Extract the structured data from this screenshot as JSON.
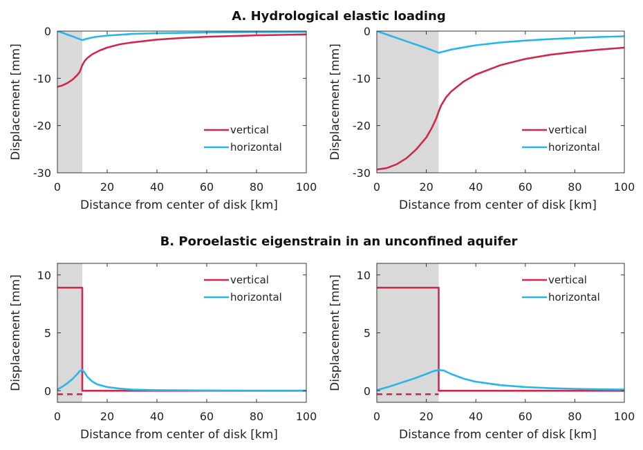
{
  "section_titles": {
    "a": "A. Hydrological elastic loading",
    "b": "B. Poroelastic eigenstrain in an unconfined aquifer"
  },
  "colors": {
    "vertical": "#d0284b",
    "horizontal": "#27b6ea",
    "shade": "#d9d9d9"
  },
  "chart_data": [
    {
      "id": "a-left",
      "type": "line",
      "xlabel": "Distance from center of disk [km]",
      "ylabel": "Displacement [mm]",
      "xlim": [
        0,
        100
      ],
      "ylim": [
        -30,
        0
      ],
      "xticks": [
        0,
        20,
        40,
        60,
        80,
        100
      ],
      "yticks": [
        0,
        -10,
        -20,
        -30
      ],
      "shaded_region": [
        0,
        10
      ],
      "legend": "bottom-right",
      "series": [
        {
          "name": "vertical",
          "style": "solid",
          "x": [
            0,
            2,
            4,
            6,
            8,
            9,
            10,
            11,
            12,
            14,
            17,
            20,
            25,
            30,
            40,
            50,
            60,
            70,
            80,
            90,
            100
          ],
          "y": [
            -11.8,
            -11.5,
            -11.0,
            -10.3,
            -9.3,
            -8.6,
            -7.2,
            -6.3,
            -5.7,
            -4.9,
            -4.1,
            -3.5,
            -2.8,
            -2.4,
            -1.8,
            -1.45,
            -1.2,
            -1.05,
            -0.9,
            -0.8,
            -0.7
          ]
        },
        {
          "name": "horizontal",
          "style": "solid",
          "x": [
            0,
            2,
            4,
            6,
            8,
            10,
            12,
            15,
            20,
            30,
            40,
            60,
            80,
            100
          ],
          "y": [
            0,
            -0.35,
            -0.75,
            -1.1,
            -1.5,
            -1.9,
            -1.6,
            -1.25,
            -0.95,
            -0.6,
            -0.45,
            -0.3,
            -0.22,
            -0.18
          ]
        }
      ]
    },
    {
      "id": "a-right",
      "type": "line",
      "xlabel": "Distance from center of disk [km]",
      "ylabel": "Displacement [mm]",
      "xlim": [
        0,
        100
      ],
      "ylim": [
        -30,
        0
      ],
      "xticks": [
        0,
        20,
        40,
        60,
        80,
        100
      ],
      "yticks": [
        0,
        -10,
        -20,
        -30
      ],
      "shaded_region": [
        0,
        25
      ],
      "legend": "bottom-right",
      "series": [
        {
          "name": "vertical",
          "style": "solid",
          "x": [
            0,
            4,
            8,
            12,
            16,
            20,
            22,
            24,
            25,
            26,
            28,
            30,
            35,
            40,
            50,
            60,
            70,
            80,
            90,
            100
          ],
          "y": [
            -29.3,
            -29.0,
            -28.2,
            -26.9,
            -25.0,
            -22.5,
            -20.7,
            -18.5,
            -17.0,
            -15.7,
            -14.0,
            -12.8,
            -10.7,
            -9.2,
            -7.2,
            -5.9,
            -5.0,
            -4.4,
            -3.9,
            -3.5
          ]
        },
        {
          "name": "horizontal",
          "style": "solid",
          "x": [
            0,
            5,
            10,
            15,
            20,
            25,
            30,
            40,
            50,
            60,
            70,
            80,
            90,
            100
          ],
          "y": [
            0,
            -0.9,
            -1.8,
            -2.7,
            -3.6,
            -4.6,
            -3.9,
            -3.0,
            -2.4,
            -2.0,
            -1.7,
            -1.45,
            -1.25,
            -1.1
          ]
        }
      ]
    },
    {
      "id": "b-left",
      "type": "line",
      "xlabel": "Distance from center of disk [km]",
      "ylabel": "Displacement [mm]",
      "xlim": [
        0,
        100
      ],
      "ylim": [
        -1,
        11
      ],
      "xticks": [
        0,
        20,
        40,
        60,
        80,
        100
      ],
      "yticks": [
        10,
        5,
        0
      ],
      "shaded_region": [
        0,
        10
      ],
      "legend": "top-right",
      "series": [
        {
          "name": "vertical",
          "style": "solid",
          "x": [
            0,
            10,
            10,
            100
          ],
          "y": [
            8.9,
            8.9,
            0,
            0
          ]
        },
        {
          "name": "",
          "style": "dashed",
          "color": "vertical",
          "x": [
            0,
            10
          ],
          "y": [
            -0.3,
            -0.3
          ]
        },
        {
          "name": "horizontal",
          "style": "solid",
          "x": [
            0,
            2,
            4,
            6,
            8,
            9,
            10,
            11,
            12,
            14,
            16,
            20,
            25,
            30,
            40,
            60,
            80,
            100
          ],
          "y": [
            0.1,
            0.35,
            0.65,
            1.0,
            1.45,
            1.7,
            1.8,
            1.55,
            1.2,
            0.8,
            0.55,
            0.32,
            0.18,
            0.1,
            0.05,
            0.02,
            0.01,
            0.01
          ]
        }
      ]
    },
    {
      "id": "b-right",
      "type": "line",
      "xlabel": "Distance from center of disk [km]",
      "ylabel": "Displacement [mm]",
      "xlim": [
        0,
        100
      ],
      "ylim": [
        -1,
        11
      ],
      "xticks": [
        0,
        20,
        40,
        60,
        80,
        100
      ],
      "yticks": [
        10,
        5,
        0
      ],
      "shaded_region": [
        0,
        25
      ],
      "legend": "top-right",
      "series": [
        {
          "name": "vertical",
          "style": "solid",
          "x": [
            0,
            25,
            25,
            100
          ],
          "y": [
            8.9,
            8.9,
            0,
            0
          ]
        },
        {
          "name": "",
          "style": "dashed",
          "color": "vertical",
          "x": [
            0,
            25
          ],
          "y": [
            -0.3,
            -0.3
          ]
        },
        {
          "name": "horizontal",
          "style": "solid",
          "x": [
            0,
            5,
            10,
            15,
            20,
            23,
            25,
            27,
            30,
            35,
            40,
            50,
            60,
            70,
            80,
            90,
            100
          ],
          "y": [
            0.05,
            0.35,
            0.7,
            1.05,
            1.45,
            1.7,
            1.8,
            1.75,
            1.45,
            1.05,
            0.78,
            0.48,
            0.32,
            0.22,
            0.16,
            0.12,
            0.1
          ]
        }
      ]
    }
  ]
}
